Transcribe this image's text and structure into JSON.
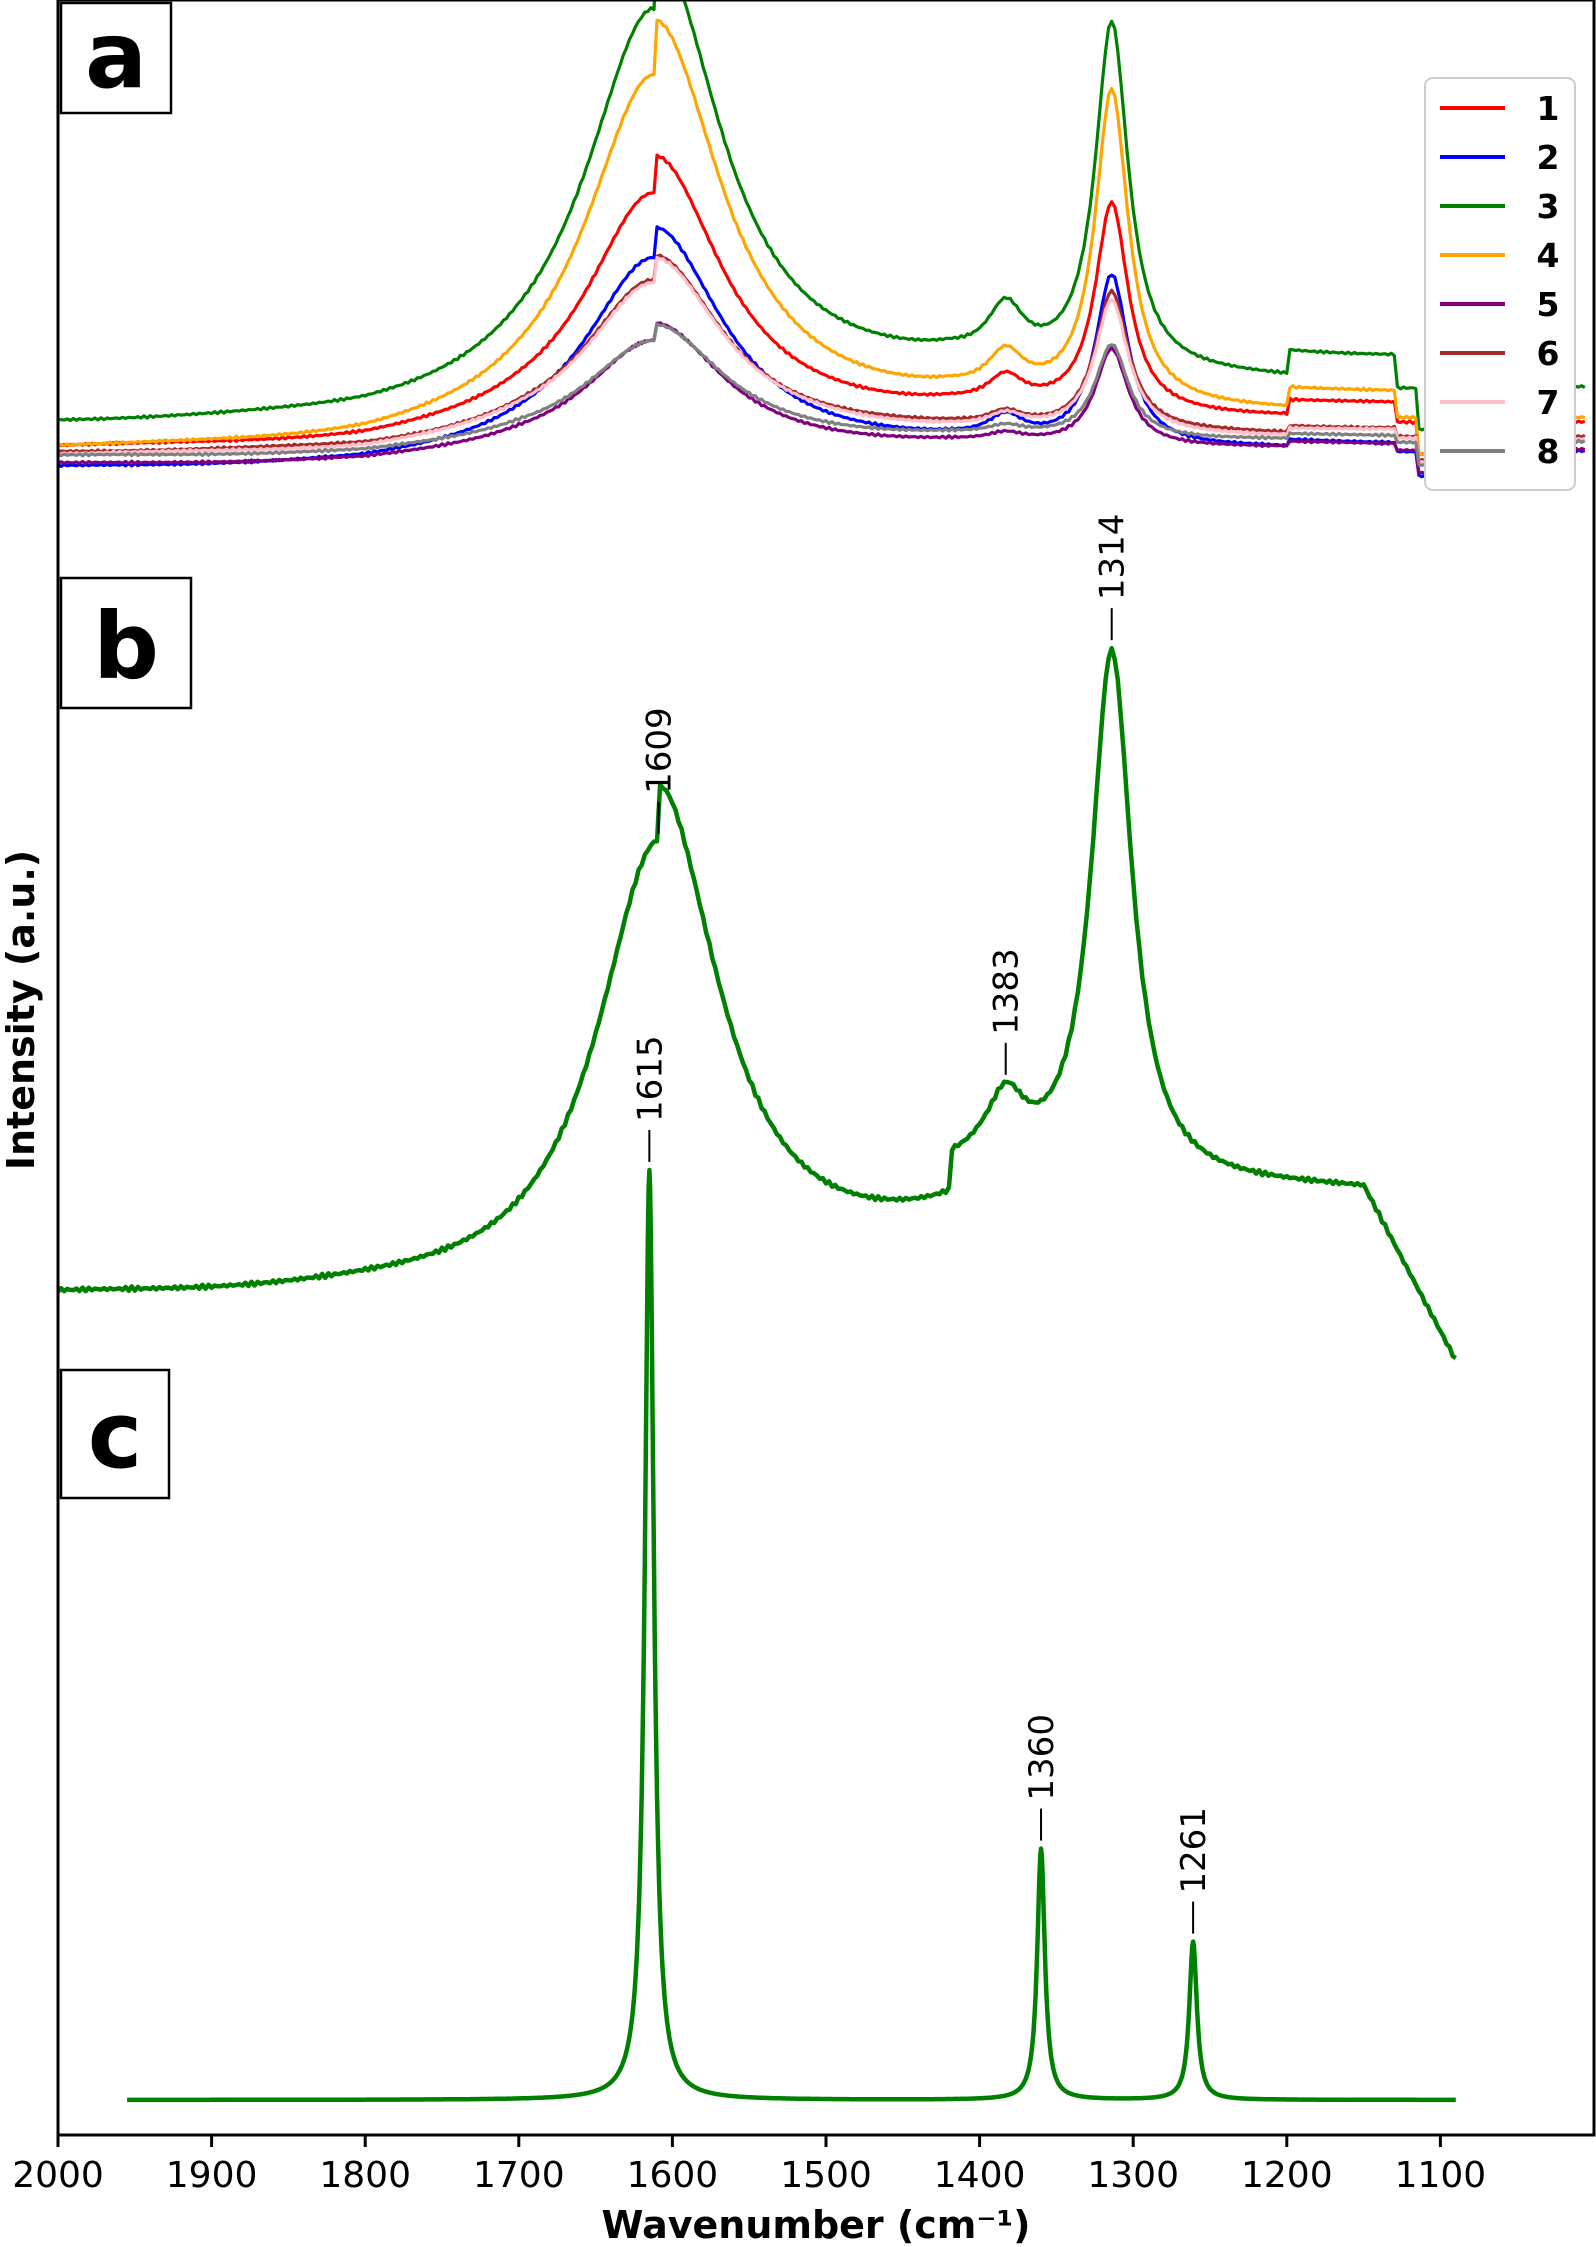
{
  "chart_data": {
    "type": "line",
    "title": "",
    "xlabel": "Wavenumber (cm⁻¹)",
    "ylabel": "Intensity (a.u.)",
    "xlim": [
      2000,
      1000
    ],
    "x_reversed": true,
    "x_ticks": [
      2000,
      1900,
      1800,
      1700,
      1600,
      1500,
      1400,
      1300,
      1200,
      1100
    ],
    "y_ticks": [],
    "grid": false,
    "panels": [
      {
        "id": "a",
        "label": "a",
        "legend_position": "top-right",
        "series": [
          {
            "name": "1",
            "color": "#ff0000",
            "baseline": 0.045,
            "broad_peak": 0.6,
            "sharp_peak": 0.6,
            "shoulder_1383": 0.1,
            "tail_1150": 0.09
          },
          {
            "name": "2",
            "color": "#0000ff",
            "baseline": 0.0,
            "broad_peak": 0.49,
            "sharp_peak": 0.49,
            "shoulder_1383": 0.08,
            "tail_1150": 0.04
          },
          {
            "name": "3",
            "color": "#008000",
            "baseline": 0.095,
            "broad_peak": 0.99,
            "sharp_peak": 1.0,
            "shoulder_1383": 0.19,
            "tail_1150": 0.15
          },
          {
            "name": "4",
            "color": "#ffa500",
            "baseline": 0.04,
            "broad_peak": 0.89,
            "sharp_peak": 0.9,
            "shoulder_1383": 0.14,
            "tail_1150": 0.12
          },
          {
            "name": "5",
            "color": "#800080",
            "baseline": 0.01,
            "broad_peak": 0.28,
            "sharp_peak": 0.28,
            "shoulder_1383": 0.03,
            "tail_1150": 0.03
          },
          {
            "name": "6",
            "color": "#a52a2a",
            "baseline": 0.035,
            "broad_peak": 0.4,
            "sharp_peak": 0.4,
            "shoulder_1383": 0.05,
            "tail_1150": 0.04
          },
          {
            "name": "7",
            "color": "#ffc0cb",
            "baseline": 0.03,
            "broad_peak": 0.4,
            "sharp_peak": 0.38,
            "shoulder_1383": 0.05,
            "tail_1150": 0.04
          },
          {
            "name": "8",
            "color": "#808080",
            "baseline": 0.028,
            "broad_peak": 0.26,
            "sharp_peak": 0.27,
            "shoulder_1383": 0.03,
            "tail_1150": 0.03
          }
        ]
      },
      {
        "id": "b",
        "label": "b",
        "color": "#008000",
        "annotations": [
          "1609",
          "1383",
          "1314"
        ],
        "annotation_x": [
          1609,
          1383,
          1314
        ],
        "profile": {
          "baseline": 0.0,
          "peaks": [
            {
              "center": 1609,
              "height": 1.0,
              "width": 48
            },
            {
              "center": 1314,
              "height": 1.0,
              "width": 16
            },
            {
              "center": 1383,
              "height": 0.12,
              "width": 15
            }
          ],
          "tail_start": 1590,
          "tail_end": 1150,
          "tail_height": 0.18
        }
      },
      {
        "id": "c",
        "label": "c",
        "color": "#008000",
        "annotations": [
          "1615",
          "1360",
          "1261"
        ],
        "annotation_x": [
          1615,
          1360,
          1261
        ],
        "x_range": [
          1955,
          1090
        ],
        "peaks": [
          {
            "center": 1615,
            "height": 1.0,
            "width": 3.5
          },
          {
            "center": 1360,
            "height": 0.27,
            "width": 3.0
          },
          {
            "center": 1261,
            "height": 0.17,
            "width": 3.0
          }
        ]
      }
    ]
  }
}
